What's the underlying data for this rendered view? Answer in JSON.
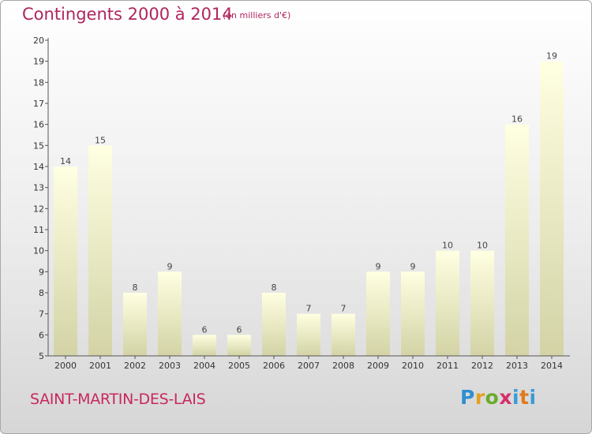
{
  "title": "Contingents 2000 à 2014",
  "subtitle": "(en milliers d'€)",
  "place": "SAINT-MARTIN-DES-LAIS",
  "logo": {
    "p": "P",
    "r": "r",
    "o": "o",
    "x": "x",
    "i": "i",
    "t": "t",
    "i2": "i"
  },
  "colors": {
    "title": "#b0255e",
    "bar_top": "#ffffe0",
    "bar_bottom": "#d4d4a8"
  },
  "chart_data": {
    "type": "bar",
    "title": "Contingents 2000 à 2014",
    "subtitle": "(en milliers d'€)",
    "categories": [
      "2000",
      "2001",
      "2002",
      "2003",
      "2004",
      "2005",
      "2006",
      "2007",
      "2008",
      "2009",
      "2010",
      "2011",
      "2012",
      "2013",
      "2014"
    ],
    "values": [
      14,
      15,
      8,
      9,
      6,
      6,
      8,
      7,
      7,
      9,
      9,
      10,
      10,
      16,
      19
    ],
    "value_labels": [
      "14",
      "15",
      "8",
      "9",
      "6",
      "6",
      "8",
      "7",
      "7",
      "9",
      "9",
      "10",
      "10",
      "16",
      "19"
    ],
    "yticks": [
      "5",
      "6",
      "7",
      "8",
      "9",
      "10",
      "11",
      "12",
      "13",
      "14",
      "15",
      "16",
      "17",
      "18",
      "19",
      "20"
    ],
    "ylim": [
      5,
      20
    ],
    "grid": false,
    "legend": "none"
  }
}
